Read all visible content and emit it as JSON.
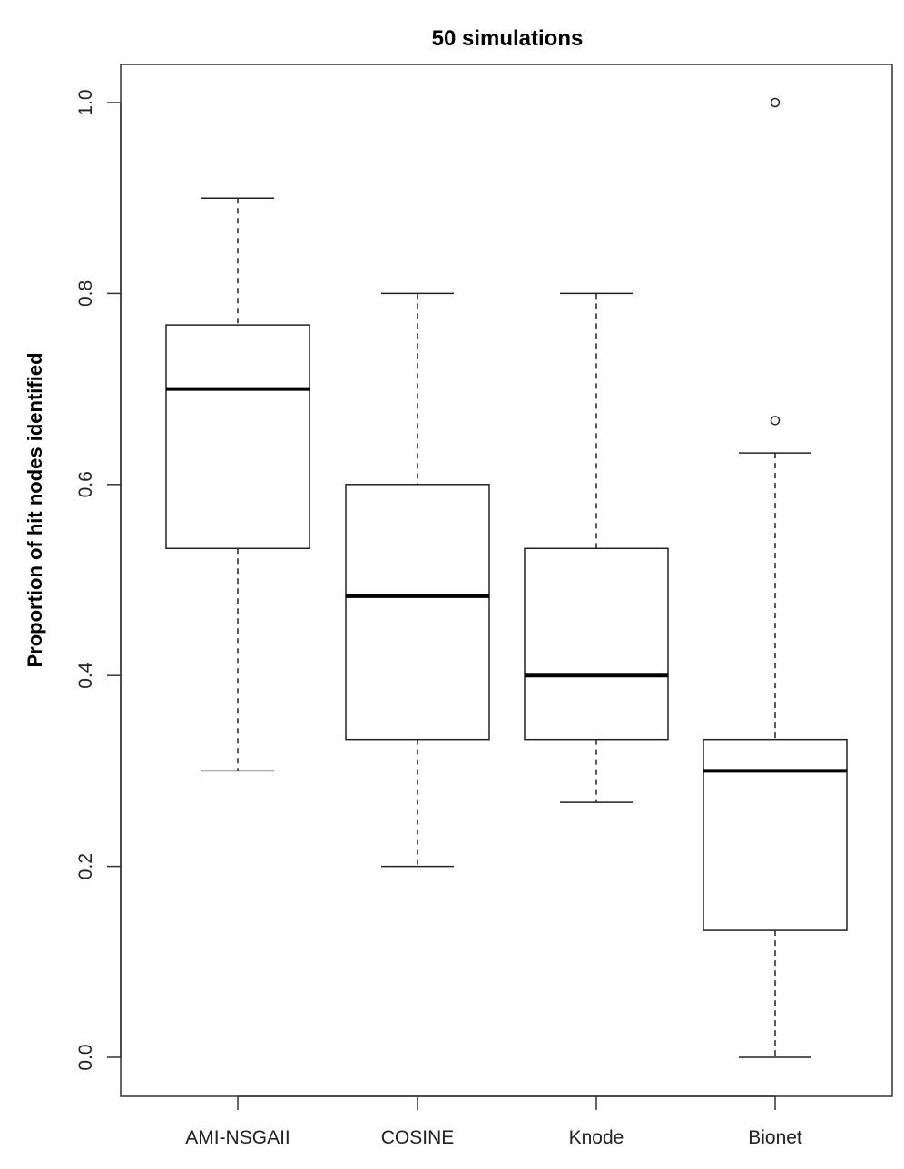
{
  "chart_data": {
    "type": "boxplot",
    "title": "50 simulations",
    "xlabel": "",
    "ylabel": "Proportion of hit nodes identified",
    "ylim": [
      0.0,
      1.0
    ],
    "yticks": [
      0.0,
      0.2,
      0.4,
      0.6,
      0.8,
      1.0
    ],
    "ytick_labels": [
      "0.0",
      "0.2",
      "0.4",
      "0.6",
      "0.8",
      "1.0"
    ],
    "grid": false,
    "legend": null,
    "categories": [
      "AMI-NSGAII",
      "COSINE",
      "Knode",
      "Bionet"
    ],
    "series": [
      {
        "name": "AMI-NSGAII",
        "whisker_low": 0.3,
        "q1": 0.533,
        "median": 0.7,
        "q3": 0.767,
        "whisker_high": 0.9,
        "outliers": []
      },
      {
        "name": "COSINE",
        "whisker_low": 0.2,
        "q1": 0.333,
        "median": 0.483,
        "q3": 0.6,
        "whisker_high": 0.8,
        "outliers": []
      },
      {
        "name": "Knode",
        "whisker_low": 0.267,
        "q1": 0.333,
        "median": 0.4,
        "q3": 0.533,
        "whisker_high": 0.8,
        "outliers": []
      },
      {
        "name": "Bionet",
        "whisker_low": 0.0,
        "q1": 0.133,
        "median": 0.3,
        "q3": 0.333,
        "whisker_high": 0.633,
        "outliers": [
          0.667,
          1.0
        ]
      }
    ],
    "colors": {
      "box_fill": "#ffffff",
      "stroke": "#222222",
      "median": "#000000"
    }
  }
}
